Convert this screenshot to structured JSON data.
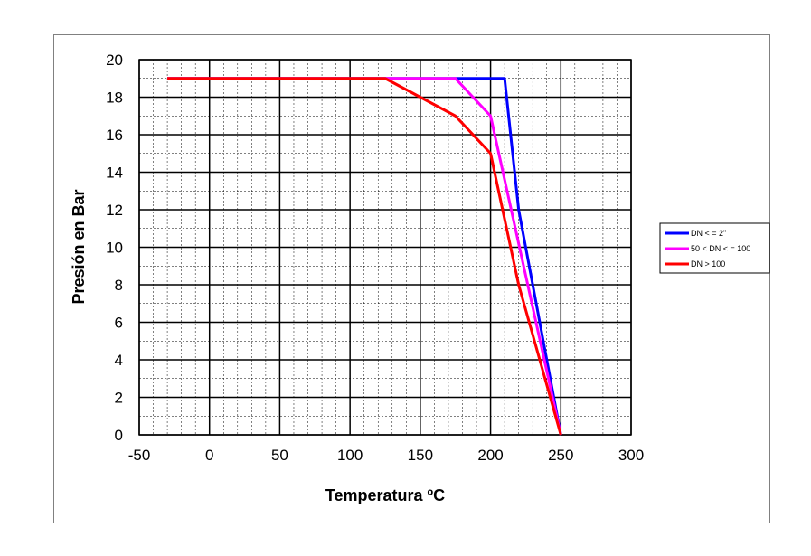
{
  "chart_data": {
    "type": "line",
    "xlabel": "Temperatura ºC",
    "ylabel": "Presión en Bar",
    "xlim": [
      -50,
      300
    ],
    "ylim": [
      0,
      20
    ],
    "x_ticks": [
      -50,
      0,
      50,
      100,
      150,
      200,
      250,
      300
    ],
    "y_ticks": [
      0,
      2,
      4,
      6,
      8,
      10,
      12,
      14,
      16,
      18,
      20
    ],
    "x_minor_step": 10,
    "y_minor_step": 1,
    "grid": true,
    "legend_position": "right",
    "series": [
      {
        "name": "DN < = 2\"",
        "color": "#0000ff",
        "points": [
          [
            -30,
            19
          ],
          [
            210,
            19
          ],
          [
            220,
            12
          ],
          [
            250,
            0
          ]
        ]
      },
      {
        "name": "50 < DN < = 100",
        "color": "#ff00ff",
        "points": [
          [
            -30,
            19
          ],
          [
            175,
            19
          ],
          [
            200,
            17
          ],
          [
            250,
            0
          ]
        ]
      },
      {
        "name": "DN > 100",
        "color": "#ff0000",
        "points": [
          [
            -30,
            19
          ],
          [
            125,
            19
          ],
          [
            150,
            18
          ],
          [
            175,
            17
          ],
          [
            200,
            15
          ],
          [
            220,
            8
          ],
          [
            250,
            0
          ]
        ]
      }
    ]
  }
}
